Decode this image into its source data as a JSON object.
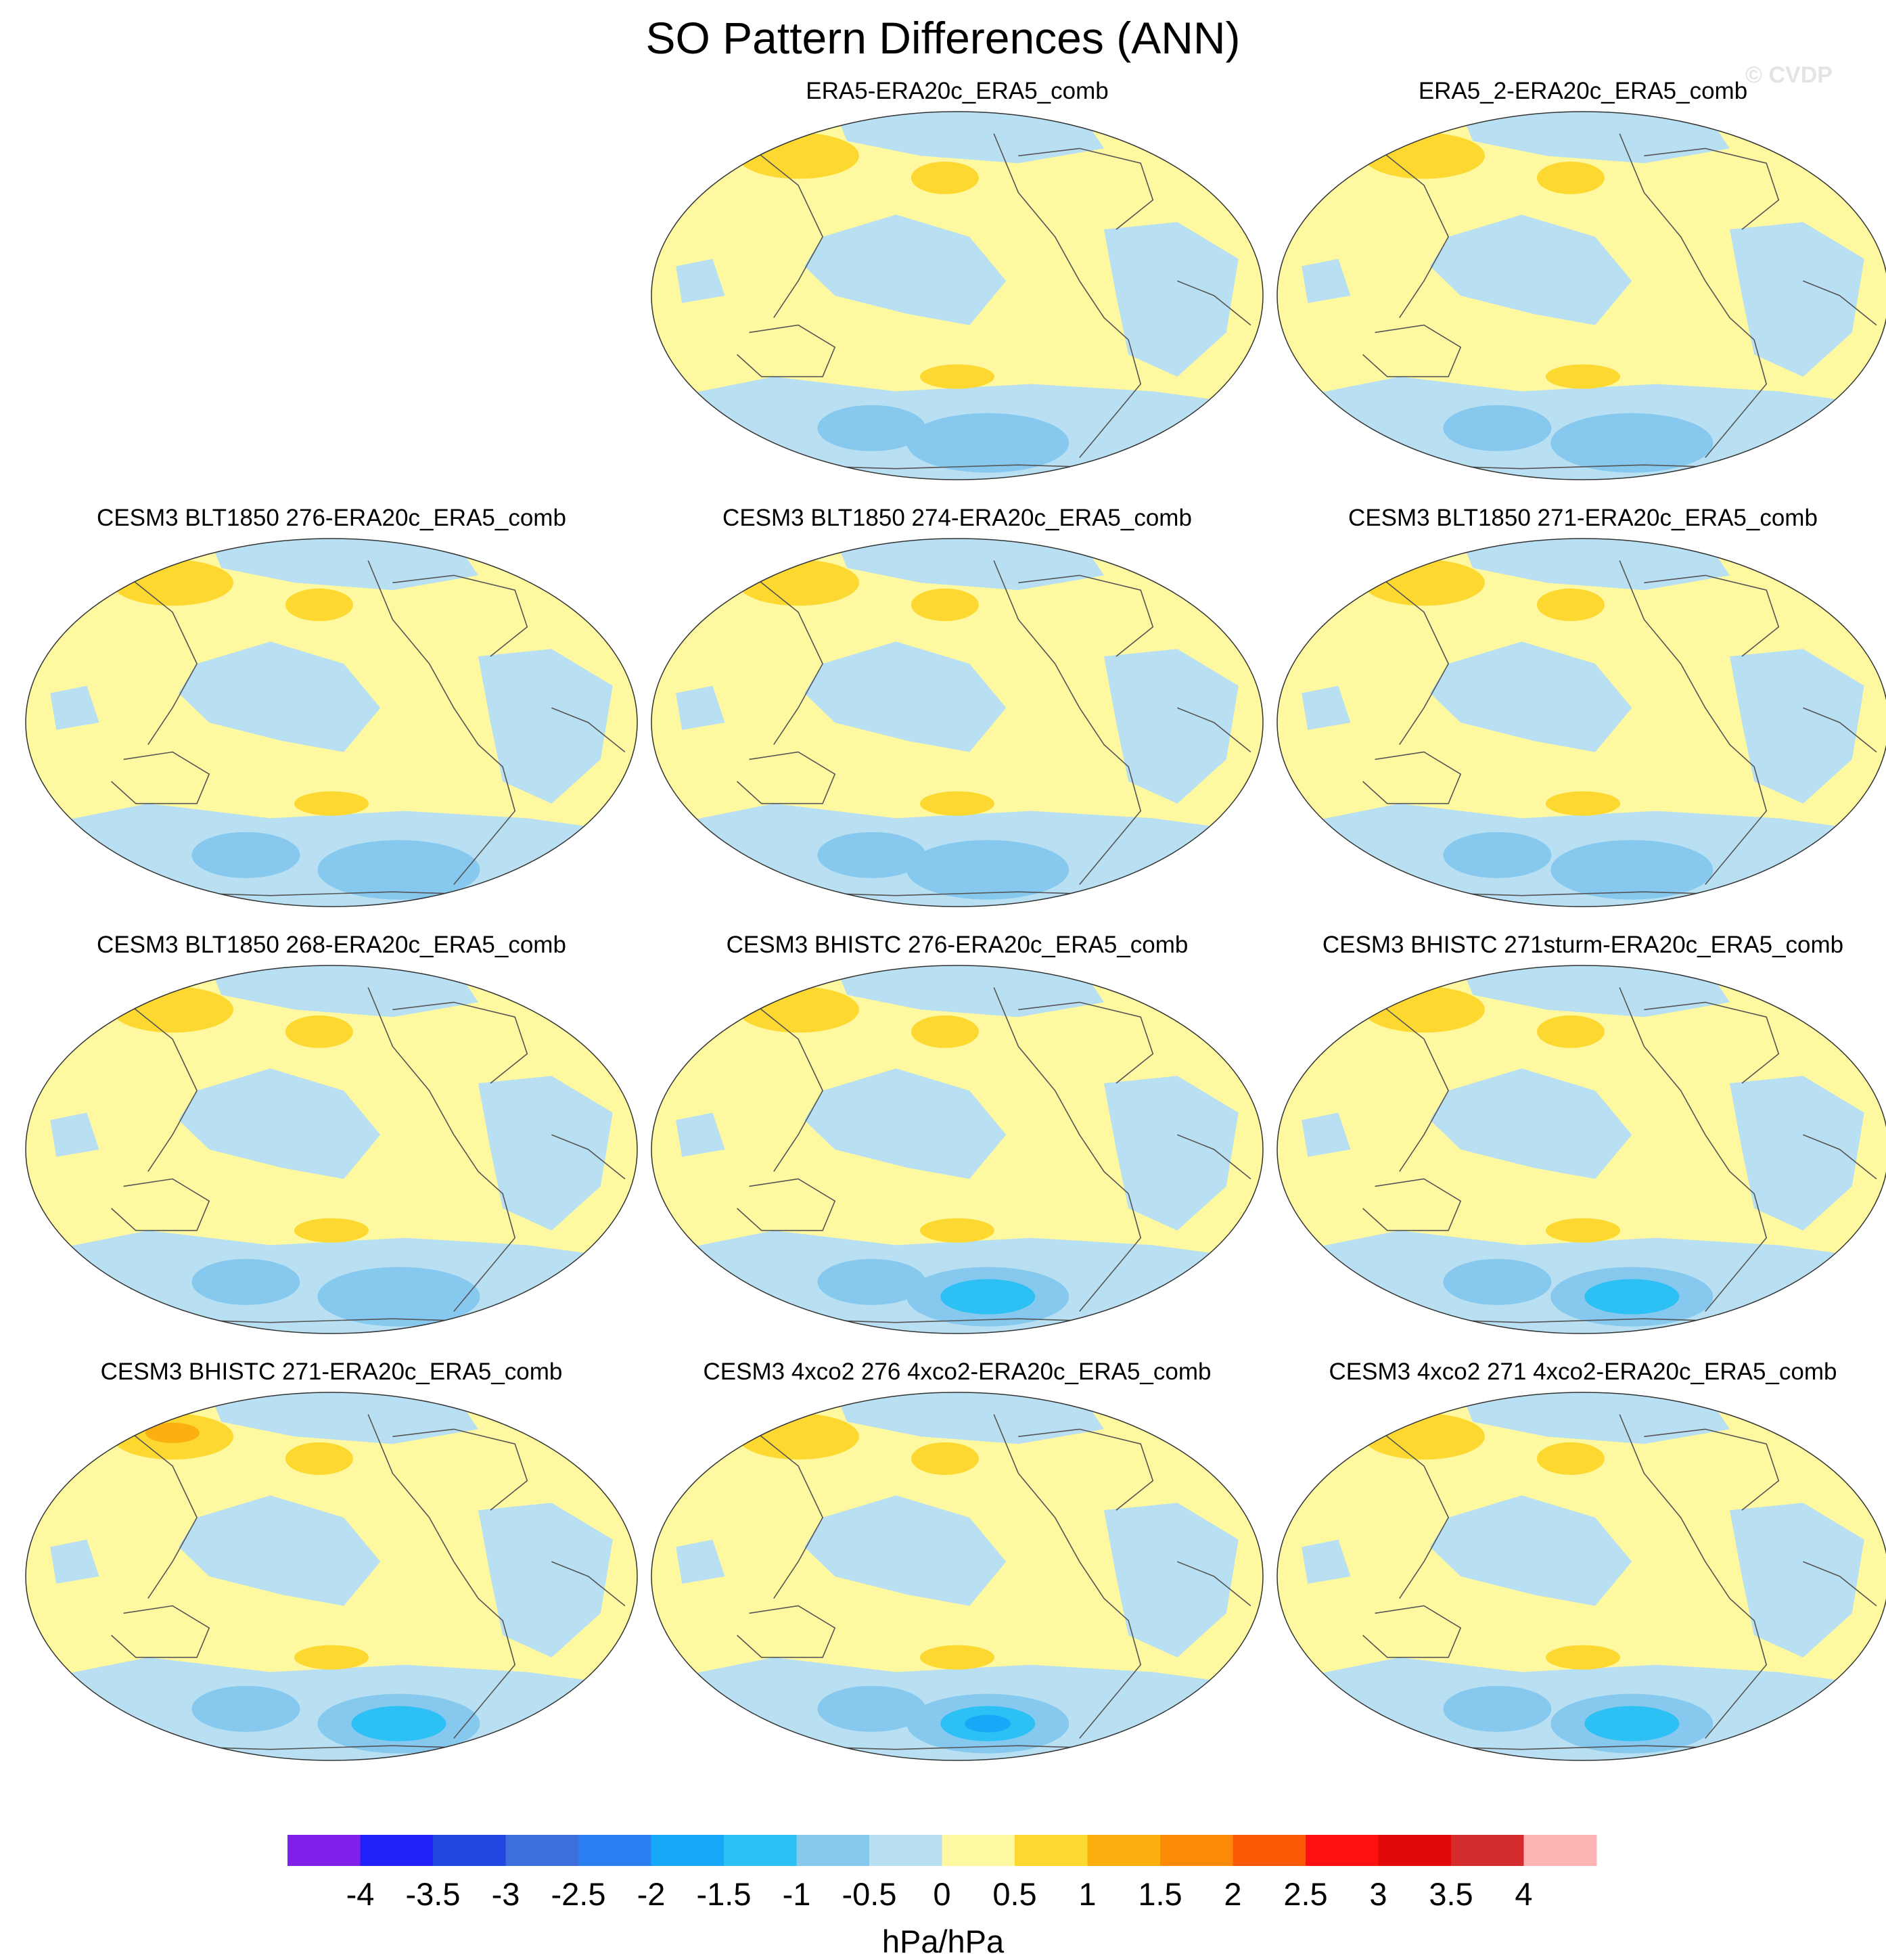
{
  "figure": {
    "title": "SO Pattern Differences (ANN)",
    "watermark": "© CVDP"
  },
  "chart_data": {
    "type": "heatmap",
    "projection": "Robinson, Pacific-centred (global map)",
    "variable": "Southern Oscillation pattern difference (model minus ERA20c_ERA5_comb)",
    "season": "ANN",
    "panels": [
      {
        "title": "ERA5-ERA20c_ERA5_comb",
        "max_positive": 1.0,
        "max_negative": -1.0
      },
      {
        "title": "ERA5_2-ERA20c_ERA5_comb",
        "max_positive": 1.0,
        "max_negative": -1.0
      },
      {
        "title": "CESM3 BLT1850 276-ERA20c_ERA5_comb",
        "max_positive": 1.0,
        "max_negative": -1.0
      },
      {
        "title": "CESM3 BLT1850 274-ERA20c_ERA5_comb",
        "max_positive": 1.0,
        "max_negative": -1.0
      },
      {
        "title": "CESM3 BLT1850 271-ERA20c_ERA5_comb",
        "max_positive": 1.0,
        "max_negative": -1.0
      },
      {
        "title": "CESM3 BLT1850 268-ERA20c_ERA5_comb",
        "max_positive": 1.0,
        "max_negative": -1.0
      },
      {
        "title": "CESM3 BHISTC 276-ERA20c_ERA5_comb",
        "max_positive": 1.0,
        "max_negative": -1.5
      },
      {
        "title": "CESM3 BHISTC 271sturm-ERA20c_ERA5_comb",
        "max_positive": 1.0,
        "max_negative": -1.5
      },
      {
        "title": "CESM3 BHISTC 271-ERA20c_ERA5_comb",
        "max_positive": 1.5,
        "max_negative": -1.5
      },
      {
        "title": "CESM3 4xco2 276 4xco2-ERA20c_ERA5_comb",
        "max_positive": 1.0,
        "max_negative": -2.0
      },
      {
        "title": "CESM3 4xco2 271 4xco2-ERA20c_ERA5_comb",
        "max_positive": 1.0,
        "max_negative": -1.5
      }
    ],
    "colorbar": {
      "levels": [
        "-4",
        "-3.5",
        "-3",
        "-2.5",
        "-2",
        "-1.5",
        "-1",
        "-0.5",
        "0",
        "0.5",
        "1",
        "1.5",
        "2",
        "2.5",
        "3",
        "3.5",
        "4"
      ],
      "colors": [
        "#8120ea",
        "#2020f8",
        "#2048e0",
        "#3c6edc",
        "#2a80f0",
        "#18a8f8",
        "#2cc0f4",
        "#86c8ee",
        "#b8e0f2",
        "#fef8a0",
        "#fcd830",
        "#fcb010",
        "#fc8a06",
        "#fc5a04",
        "#fc1010",
        "#e00808",
        "#d42c2c",
        "#ffb4b4"
      ],
      "units": "hPa/hPa"
    }
  }
}
